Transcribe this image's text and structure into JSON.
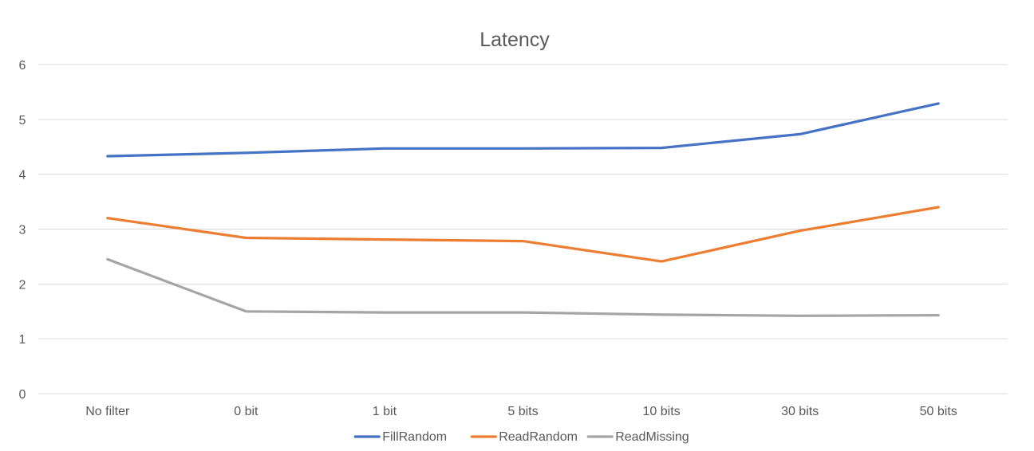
{
  "chart_data": {
    "type": "line",
    "title": "Latency",
    "xlabel": "",
    "ylabel": "",
    "categories": [
      "No filter",
      "0 bit",
      "1 bit",
      "5 bits",
      "10 bits",
      "30 bits",
      "50 bits"
    ],
    "ylim": [
      0,
      6
    ],
    "yticks": [
      0,
      1,
      2,
      3,
      4,
      5,
      6
    ],
    "grid": true,
    "legend": "bottom-center",
    "series": [
      {
        "name": "FillRandom",
        "color": "#4472c4",
        "values": [
          4.33,
          4.39,
          4.47,
          4.47,
          4.48,
          4.73,
          5.29
        ]
      },
      {
        "name": "ReadRandom",
        "color": "#ed7d31",
        "values": [
          3.2,
          2.84,
          2.81,
          2.78,
          2.41,
          2.97,
          3.4
        ]
      },
      {
        "name": "ReadMissing",
        "color": "#a5a5a5",
        "values": [
          2.45,
          1.5,
          1.48,
          1.48,
          1.44,
          1.42,
          1.43
        ]
      }
    ]
  }
}
